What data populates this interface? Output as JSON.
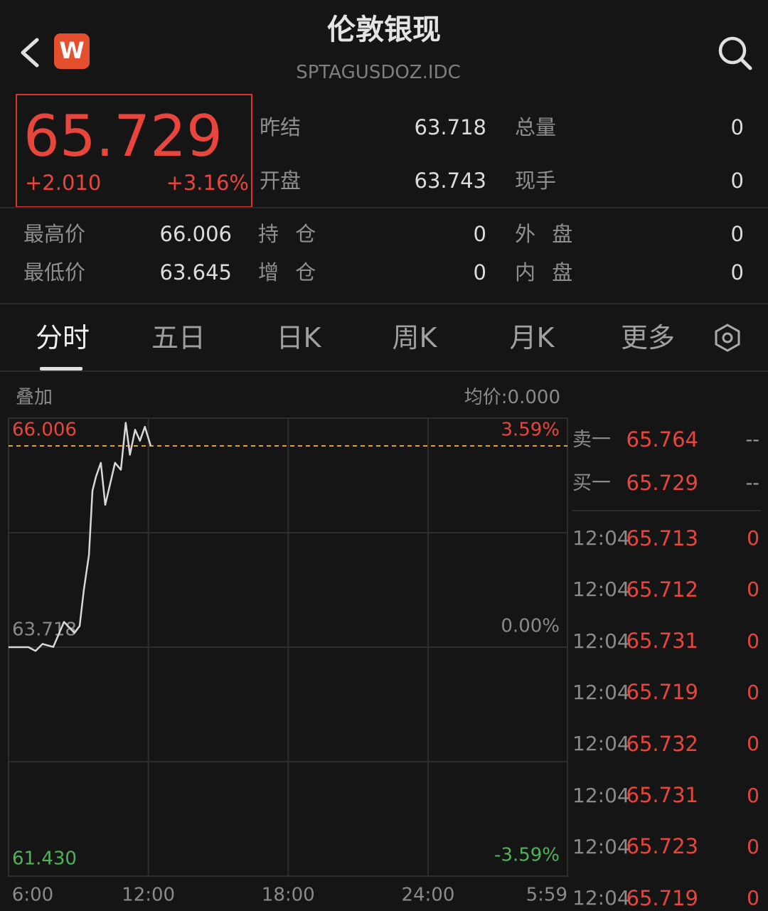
{
  "header": {
    "logo": "W",
    "title": "伦敦银现",
    "code": "SPTAGUSDOZ.IDC"
  },
  "quote": {
    "price": "65.729",
    "change": "+2.010",
    "percent": "+3.16%"
  },
  "stats": [
    [
      {
        "label": "昨结",
        "value": "63.718"
      },
      {
        "label": "总量",
        "value": "0"
      }
    ],
    [
      {
        "label": "开盘",
        "value": "63.743"
      },
      {
        "label": "现手",
        "value": "0"
      }
    ],
    [
      {
        "label": "最高价",
        "value": "66.006"
      },
      {
        "label": "持 仓",
        "value": "0"
      },
      {
        "label": "外 盘",
        "value": "0"
      }
    ],
    [
      {
        "label": "最低价",
        "value": "63.645"
      },
      {
        "label": "增 仓",
        "value": "0"
      },
      {
        "label": "内 盘",
        "value": "0"
      }
    ]
  ],
  "tabs": [
    "分时",
    "五日",
    "日K",
    "周K",
    "月K",
    "更多"
  ],
  "chart_toolbar": {
    "overlay": "叠加",
    "average": "均价:0.000"
  },
  "chart_data": {
    "type": "line",
    "xlim": [
      6,
      29.983
    ],
    "xticks": [
      {
        "value": 6,
        "label": "6:00"
      },
      {
        "value": 12,
        "label": "12:00"
      },
      {
        "value": 18,
        "label": "18:00"
      },
      {
        "value": 24,
        "label": "24:00"
      },
      {
        "value": 29.983,
        "label": "5:59"
      }
    ],
    "ylim": [
      61.43,
      66.006
    ],
    "yticks": [
      {
        "value": 61.43,
        "label": "61.430"
      },
      {
        "value": 63.718,
        "label": "63.718"
      },
      {
        "value": 66.006,
        "label": "66.006"
      }
    ],
    "y2lim": [
      -3.59,
      3.59
    ],
    "y2ticks": [
      {
        "value": -3.59,
        "label": "-3.59%"
      },
      {
        "value": 0,
        "label": "0.00%"
      },
      {
        "value": 3.59,
        "label": "3.59%"
      }
    ],
    "grid": true,
    "price_line": 65.729,
    "price_line_color": "#e0a040",
    "series": [
      {
        "color": "#d8d8d8",
        "x": [
          6.0,
          6.85,
          7.16,
          7.46,
          7.92,
          8.38,
          8.83,
          9.05,
          9.23,
          9.45,
          9.6,
          9.75,
          9.96,
          10.15,
          10.36,
          10.57,
          10.82,
          11.03,
          11.21,
          11.43,
          11.64,
          11.85,
          12.1
        ],
        "values": [
          63.718,
          63.718,
          63.68,
          63.75,
          63.72,
          63.97,
          63.86,
          63.93,
          64.29,
          64.64,
          65.28,
          65.42,
          65.56,
          65.14,
          65.35,
          65.56,
          65.49,
          65.96,
          65.64,
          65.89,
          65.78,
          65.92,
          65.73
        ]
      }
    ]
  },
  "order_book": {
    "quotes": [
      {
        "label": "卖一",
        "price": "65.764",
        "volume": "--"
      },
      {
        "label": "买一",
        "price": "65.729",
        "volume": "--"
      }
    ],
    "ticks": [
      {
        "time": "12:04",
        "price": "65.713",
        "volume": "0"
      },
      {
        "time": "12:04",
        "price": "65.712",
        "volume": "0"
      },
      {
        "time": "12:04",
        "price": "65.731",
        "volume": "0"
      },
      {
        "time": "12:04",
        "price": "65.719",
        "volume": "0"
      },
      {
        "time": "12:04",
        "price": "65.732",
        "volume": "0"
      },
      {
        "time": "12:04",
        "price": "65.731",
        "volume": "0"
      },
      {
        "time": "12:04",
        "price": "65.723",
        "volume": "0"
      },
      {
        "time": "12:04",
        "price": "65.719",
        "volume": "0"
      }
    ]
  }
}
